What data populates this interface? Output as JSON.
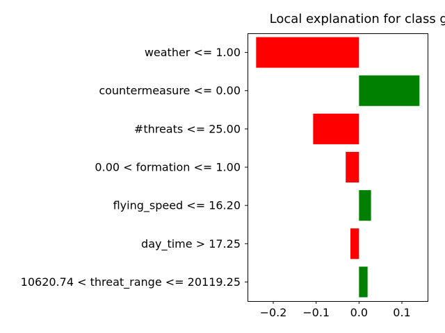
{
  "chart_data": {
    "type": "bar",
    "orientation": "horizontal",
    "title": "Local explanation for class good",
    "xlabel": "",
    "ylabel": "",
    "xlim": [
      -0.26,
      0.16
    ],
    "xticks": [
      -0.2,
      -0.1,
      0.0,
      0.1
    ],
    "xtick_labels": [
      "−0.2",
      "−0.1",
      "0.0",
      "0.1"
    ],
    "grid": false,
    "legend": "none",
    "colors": {
      "positive": "#008000",
      "negative": "#ff0000"
    },
    "categories": [
      "weather <= 1.00",
      "countermeasure <= 0.00",
      "#threats <= 25.00",
      "0.00 < formation <= 1.00",
      "flying_speed <= 16.20",
      "day_time > 17.25",
      "10620.74 < threat_range <= 20119.25"
    ],
    "values": [
      -0.24,
      0.141,
      -0.107,
      -0.031,
      0.028,
      -0.02,
      0.02
    ]
  }
}
